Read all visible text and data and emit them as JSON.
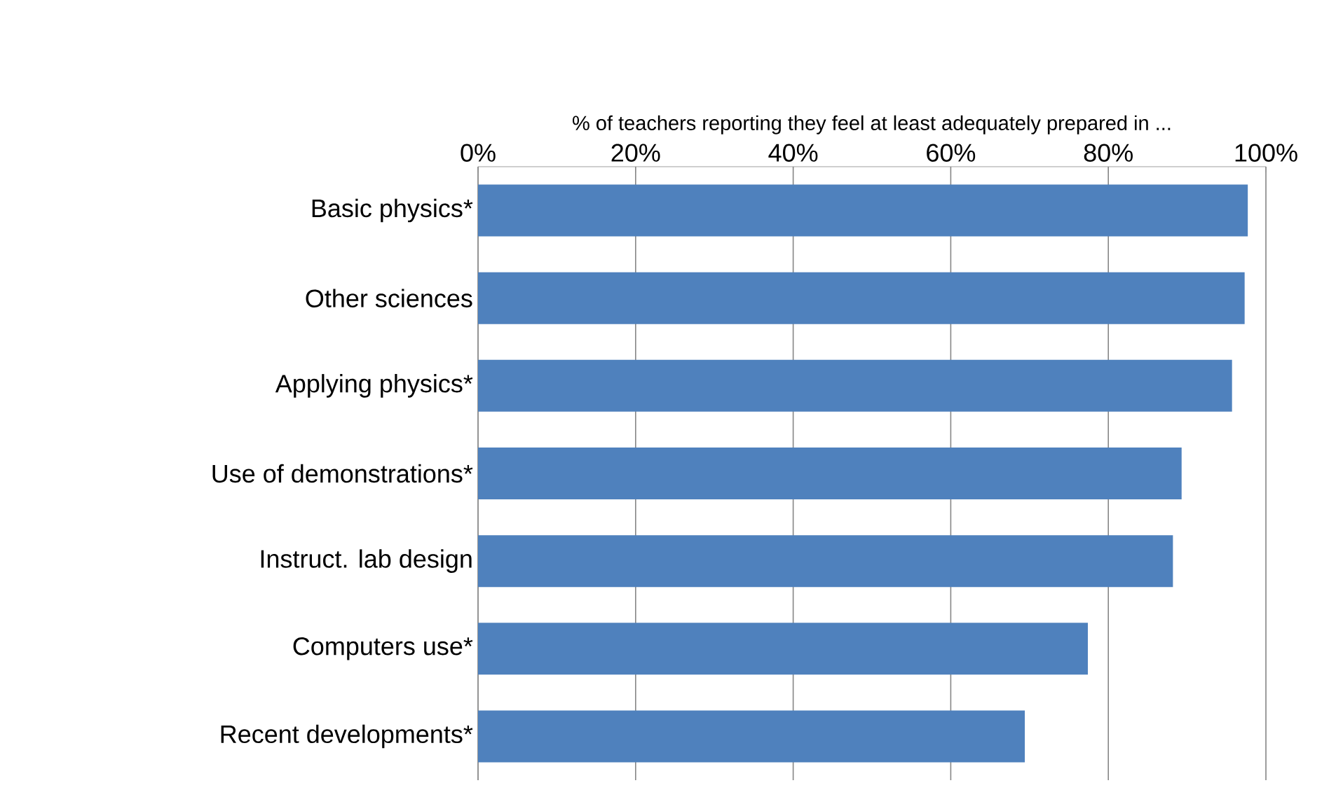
{
  "chart_data": {
    "type": "bar",
    "orientation": "horizontal",
    "xlabel": "% of teachers reporting they feel at least adequately prepared in ...",
    "categories": [
      "Basic physics*",
      "Other sciences",
      "Applying physics*",
      "Use of demonstrations*",
      "Instruct. lab design",
      "Computers use*",
      "Recent developments*"
    ],
    "values": [
      97.7,
      97.3,
      95.7,
      89.3,
      88.2,
      77.4,
      69.4
    ],
    "color": "#4f81bd",
    "xlim": [
      0,
      100
    ],
    "xticks": [
      {
        "value": 0,
        "label": "0%"
      },
      {
        "value": 20,
        "label": "20%"
      },
      {
        "value": 40,
        "label": "40%"
      },
      {
        "value": 60,
        "label": "60%"
      },
      {
        "value": 80,
        "label": "80%"
      },
      {
        "value": 100,
        "label": "100%"
      }
    ],
    "grid": "x"
  }
}
